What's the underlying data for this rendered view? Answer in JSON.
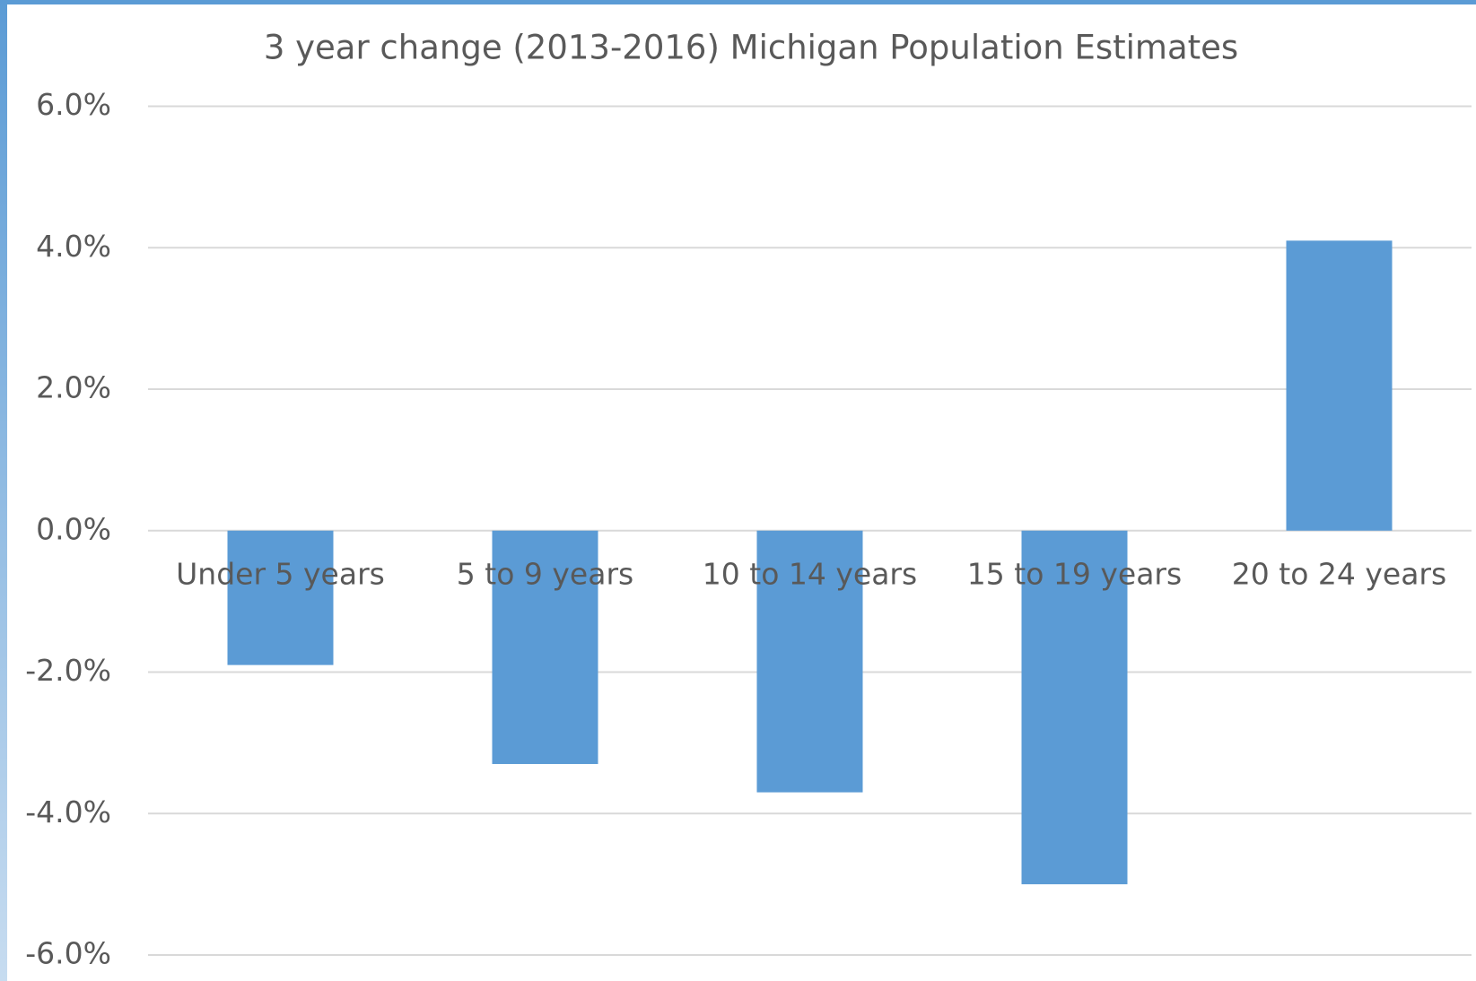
{
  "chart_data": {
    "type": "bar",
    "title": "3 year change (2013-2016) Michigan Population Estimates",
    "categories": [
      "Under 5 years",
      "5 to 9 years",
      "10 to 14 years",
      "15 to 19 years",
      "20 to 24 years"
    ],
    "values": [
      -1.9,
      -3.3,
      -3.7,
      -5.0,
      4.1
    ],
    "color": "#5b9bd5",
    "ylim": [
      -6,
      6
    ],
    "yticks": [
      {
        "value": -6,
        "label": "-6.0%"
      },
      {
        "value": -4,
        "label": "-4.0%"
      },
      {
        "value": -2,
        "label": "-2.0%"
      },
      {
        "value": 0,
        "label": "0.0%"
      },
      {
        "value": 2,
        "label": "2.0%"
      },
      {
        "value": 4,
        "label": "4.0%"
      },
      {
        "value": 6,
        "label": "6.0%"
      }
    ],
    "grid": true
  }
}
